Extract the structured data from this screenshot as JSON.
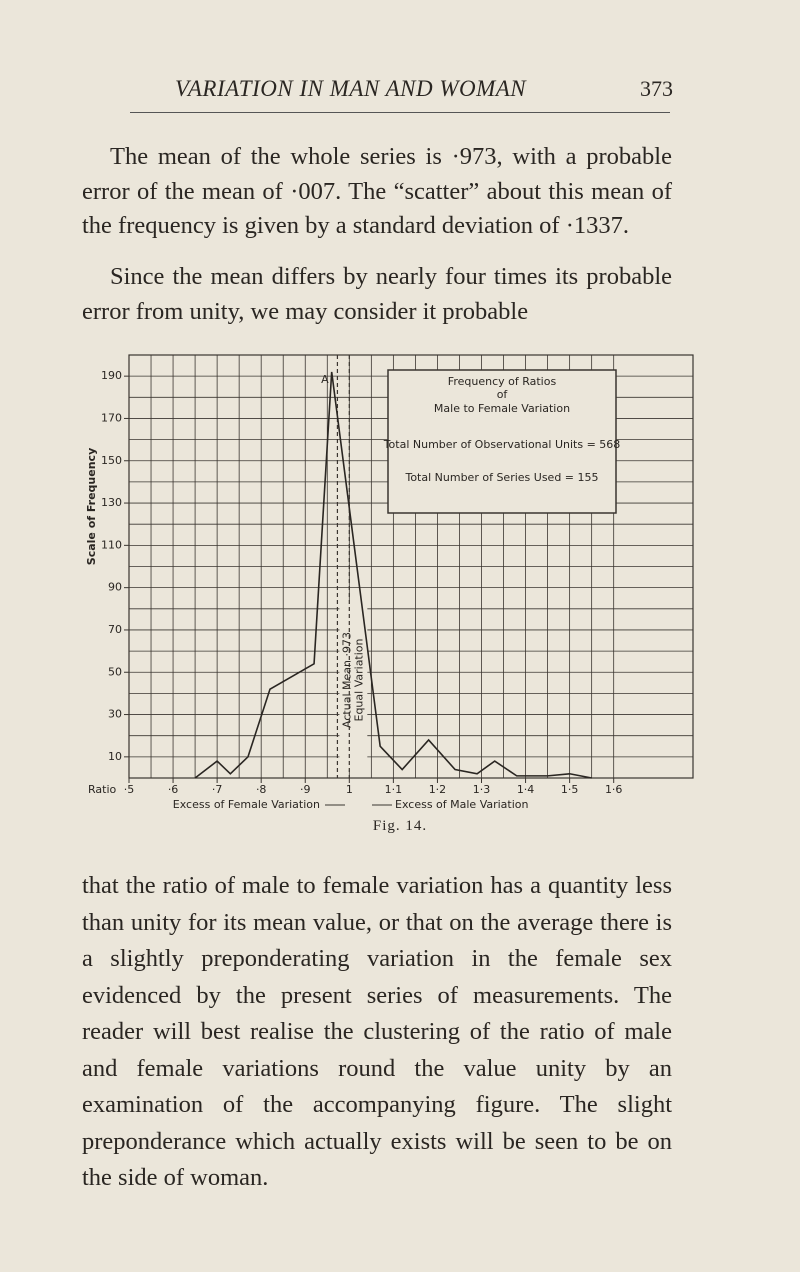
{
  "header": {
    "title": "VARIATION IN MAN AND WOMAN",
    "page": "373"
  },
  "paragraphs": [
    "The mean of the whole series is ·973, with a prob­able error of the mean of ·007. The “scatter” about this mean of the frequency is given by a standard devia­tion of ·1337.",
    "Since the mean differs by nearly four times its probable error from unity, we may consider it probable",
    "that the ratio of male to female variation has a quantity less than unity for its mean value, or that on the aver­age there is a slightly preponderating variation in the female sex evidenced by the present series of measure­ments. The reader will best realise the clustering of the ratio of male and female variations round the value unity by an examination of the accompanying figure. The slight preponderance which actually exists will be seen to be on the side of woman."
  ],
  "caption": "Fig. 14.",
  "chart_data": {
    "type": "line",
    "x_label": "Ratio",
    "y_label": "Scale of Frequency",
    "left_note": "Excess of Female Variation",
    "right_note": "Excess of Male Variation",
    "box": {
      "title": "Frequency of Ratios",
      "of": "of",
      "subtitle": "Male to Female Variation",
      "line1": "Total Number of Observational Units = 568",
      "line2": "Total Number of Series Used = 155"
    },
    "peak_label": "A",
    "annotations": [
      {
        "x": 0.973,
        "label": "Actual Mean ·973"
      },
      {
        "x": 1,
        "label": "Equal Variation"
      }
    ],
    "series": [
      {
        "color": "#2a2622",
        "x": [
          0.65,
          0.7,
          0.73,
          0.77,
          0.82,
          0.92,
          0.96,
          1.07,
          1.12,
          1.18,
          1.24,
          1.29,
          1.33,
          1.38,
          1.45,
          1.5,
          1.55
        ],
        "values": [
          0,
          8,
          2,
          10,
          42,
          54,
          192,
          15,
          4,
          18,
          4,
          2,
          8,
          1,
          1,
          2,
          0
        ]
      }
    ],
    "xlim": [
      0.5,
      1.78
    ],
    "ylim": [
      0,
      200
    ],
    "xticks": [
      {
        "value": 0.5,
        "label": "·5"
      },
      {
        "value": 0.6,
        "label": "·6"
      },
      {
        "value": 0.7,
        "label": "·7"
      },
      {
        "value": 0.8,
        "label": "·8"
      },
      {
        "value": 0.9,
        "label": "·9"
      },
      1,
      {
        "value": 1.1,
        "label": "1·1"
      },
      {
        "value": 1.2,
        "label": "1·2"
      },
      {
        "value": 1.3,
        "label": "1·3"
      },
      {
        "value": 1.4,
        "label": "1·4"
      },
      {
        "value": 1.5,
        "label": "1·5"
      },
      {
        "value": 1.6,
        "label": "1·6"
      }
    ],
    "yticks": [
      10,
      30,
      50,
      70,
      90,
      110,
      130,
      150,
      170,
      190
    ],
    "grid": true
  }
}
